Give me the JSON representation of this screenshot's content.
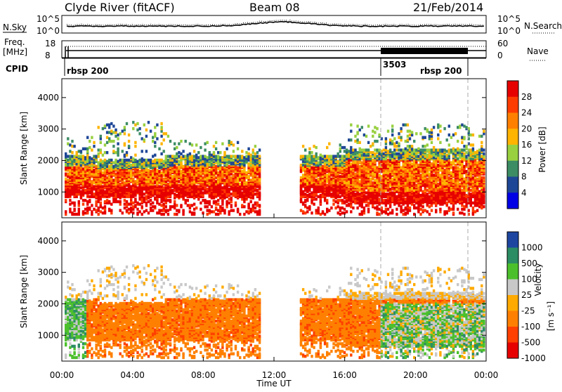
{
  "header": {
    "title": "Clyde River (fitACF)",
    "beam": "Beam 08",
    "date": "21/Feb/2014"
  },
  "info_panels": {
    "nsky_label": "N.Sky",
    "nsky_ticks": [
      "10^5",
      "10^0"
    ],
    "nsearch_label": "N.Search",
    "nsearch_ticks": [
      "10^5",
      "10^0"
    ],
    "freq_label": "Freq.",
    "freq_unit": "[MHz]",
    "freq_ticks": [
      "18",
      "8"
    ],
    "nave_label": "Nave",
    "nave_ticks": [
      "60",
      "0"
    ],
    "cpid_label": "CPID",
    "cpid_segments": [
      "rbsp 200",
      "3503",
      "rbsp 200"
    ]
  },
  "chart_data": [
    {
      "type": "heatmap",
      "panel": "power",
      "ylabel": "Slant Range [km]",
      "xlabel": "",
      "x_range_hours": [
        0,
        24
      ],
      "ylim_km": [
        180,
        4600
      ],
      "yticks": [
        "1000",
        "2000",
        "3000",
        "4000"
      ],
      "colorbar_label": "Power [dB]",
      "colorbar_ticks": [
        "28",
        "24",
        "20",
        "16",
        "12",
        "8",
        "4"
      ],
      "colorbar_colors": [
        "#e60000",
        "#ff3c00",
        "#ff8000",
        "#ffb400",
        "#98d040",
        "#3c8c64",
        "#1e4696",
        "#0000e6"
      ],
      "grid": false
    },
    {
      "type": "heatmap",
      "panel": "velocity",
      "ylabel": "Slant Range [km]",
      "xlabel": "Time UT",
      "x_range_hours": [
        0,
        24
      ],
      "ylim_km": [
        180,
        4600
      ],
      "yticks": [
        "1000",
        "2000",
        "3000",
        "4000"
      ],
      "xticks": [
        "00:00",
        "04:00",
        "08:00",
        "12:00",
        "16:00",
        "20:00",
        "00:00"
      ],
      "colorbar_label": "Velocity",
      "colorbar_unit": "[m s⁻¹]",
      "colorbar_ticks": [
        "1000",
        "500",
        "100",
        "25",
        "-25",
        "-100",
        "-500",
        "-1000"
      ],
      "colorbar_colors": [
        "#1e46a0",
        "#2c8c64",
        "#4cc02c",
        "#c8c8c8",
        "#ffaa00",
        "#ff8000",
        "#ff4000",
        "#e60000"
      ],
      "grid": false
    }
  ]
}
